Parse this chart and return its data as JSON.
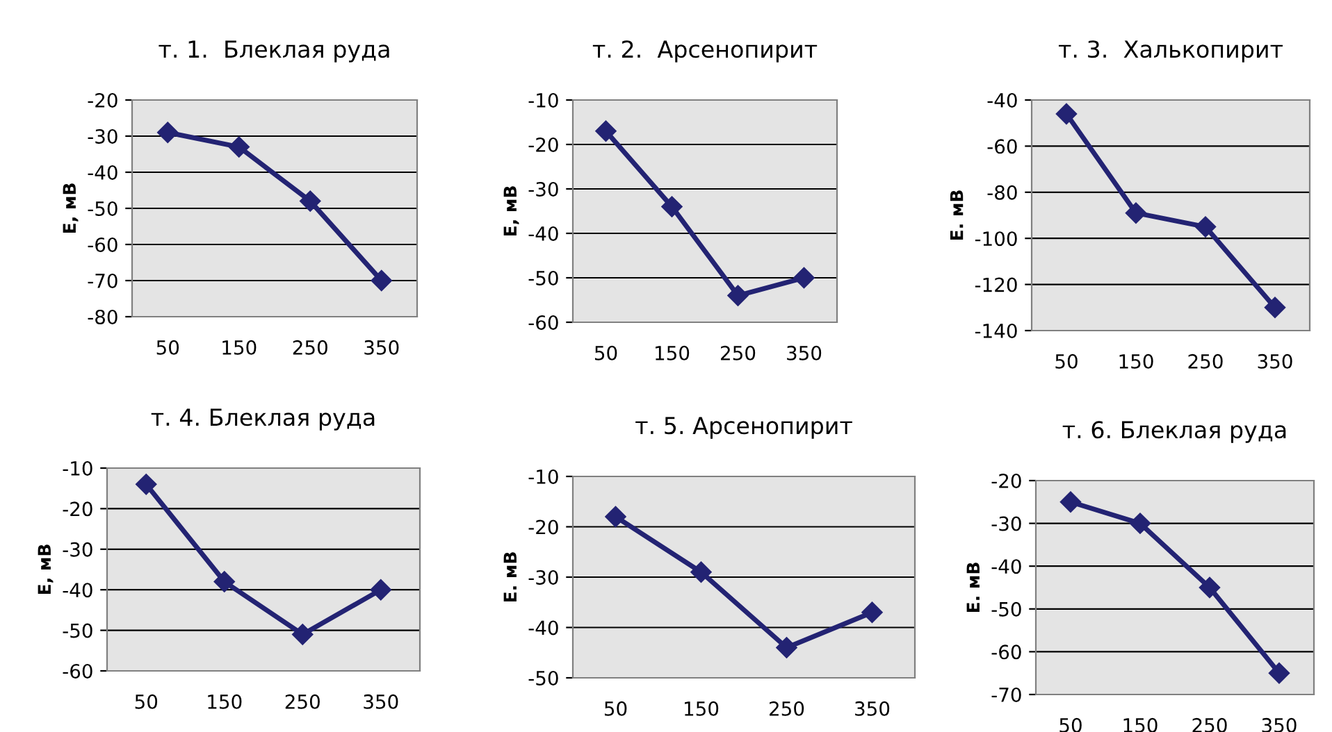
{
  "chart_data": [
    {
      "type": "line",
      "title": "т. 1.  Блеклая руда",
      "ylabel": "Е, мВ",
      "categories": [
        "50",
        "150",
        "250",
        "350"
      ],
      "series": [
        {
          "color": "#232373",
          "values": [
            -29,
            -33,
            -48,
            -70
          ]
        }
      ],
      "ylim": [
        -80,
        -20
      ],
      "yticks": [
        -80,
        -70,
        -60,
        -50,
        -40,
        -30,
        -20
      ],
      "grid": "y",
      "marker": "diamond",
      "line_style": "solid"
    },
    {
      "type": "line",
      "title": "т. 2.  Арсенопирит",
      "ylabel": "Е, мВ",
      "categories": [
        "50",
        "150",
        "250",
        "350"
      ],
      "series": [
        {
          "color": "#232373",
          "values": [
            -17,
            -34,
            -54,
            -50
          ]
        }
      ],
      "ylim": [
        -60,
        -10
      ],
      "yticks": [
        -60,
        -50,
        -40,
        -30,
        -20,
        -10
      ],
      "grid": "y",
      "marker": "diamond",
      "line_style": "solid"
    },
    {
      "type": "line",
      "title": "т. 3.  Халькопирит",
      "ylabel": "Е. мВ",
      "categories": [
        "50",
        "150",
        "250",
        "350"
      ],
      "series": [
        {
          "color": "#232373",
          "values": [
            -46,
            -89,
            -95,
            -130
          ]
        }
      ],
      "ylim": [
        -140,
        -40
      ],
      "yticks": [
        -140,
        -120,
        -100,
        -80,
        -60,
        -40
      ],
      "grid": "y",
      "marker": "diamond",
      "line_style": "solid"
    },
    {
      "type": "line",
      "title": "т. 4. Блеклая руда",
      "ylabel": "Е, мВ",
      "categories": [
        "50",
        "150",
        "250",
        "350"
      ],
      "series": [
        {
          "color": "#232373",
          "values": [
            -14,
            -38,
            -51,
            -40
          ]
        }
      ],
      "ylim": [
        -60,
        -10
      ],
      "yticks": [
        -60,
        -50,
        -40,
        -30,
        -20,
        -10
      ],
      "grid": "y",
      "marker": "diamond",
      "line_style": "solid"
    },
    {
      "type": "line",
      "title": "т. 5. Арсенопирит",
      "ylabel": "Е. мВ",
      "categories": [
        "50",
        "150",
        "250",
        "350"
      ],
      "series": [
        {
          "color": "#232373",
          "values": [
            -18,
            -29,
            -44,
            -37
          ]
        }
      ],
      "ylim": [
        -50,
        -10
      ],
      "yticks": [
        -50,
        -40,
        -30,
        -20,
        -10
      ],
      "grid": "y",
      "marker": "diamond",
      "line_style": "solid"
    },
    {
      "type": "line",
      "title": "т. 6. Блеклая руда",
      "ylabel": "Е. мВ",
      "categories": [
        "50",
        "150",
        "250",
        "350"
      ],
      "series": [
        {
          "color": "#232373",
          "values": [
            -25,
            -30,
            -45,
            -65
          ]
        }
      ],
      "ylim": [
        -70,
        -20
      ],
      "yticks": [
        -70,
        -60,
        -50,
        -40,
        -30,
        -20
      ],
      "grid": "y",
      "marker": "diamond",
      "line_style": "solid"
    }
  ]
}
